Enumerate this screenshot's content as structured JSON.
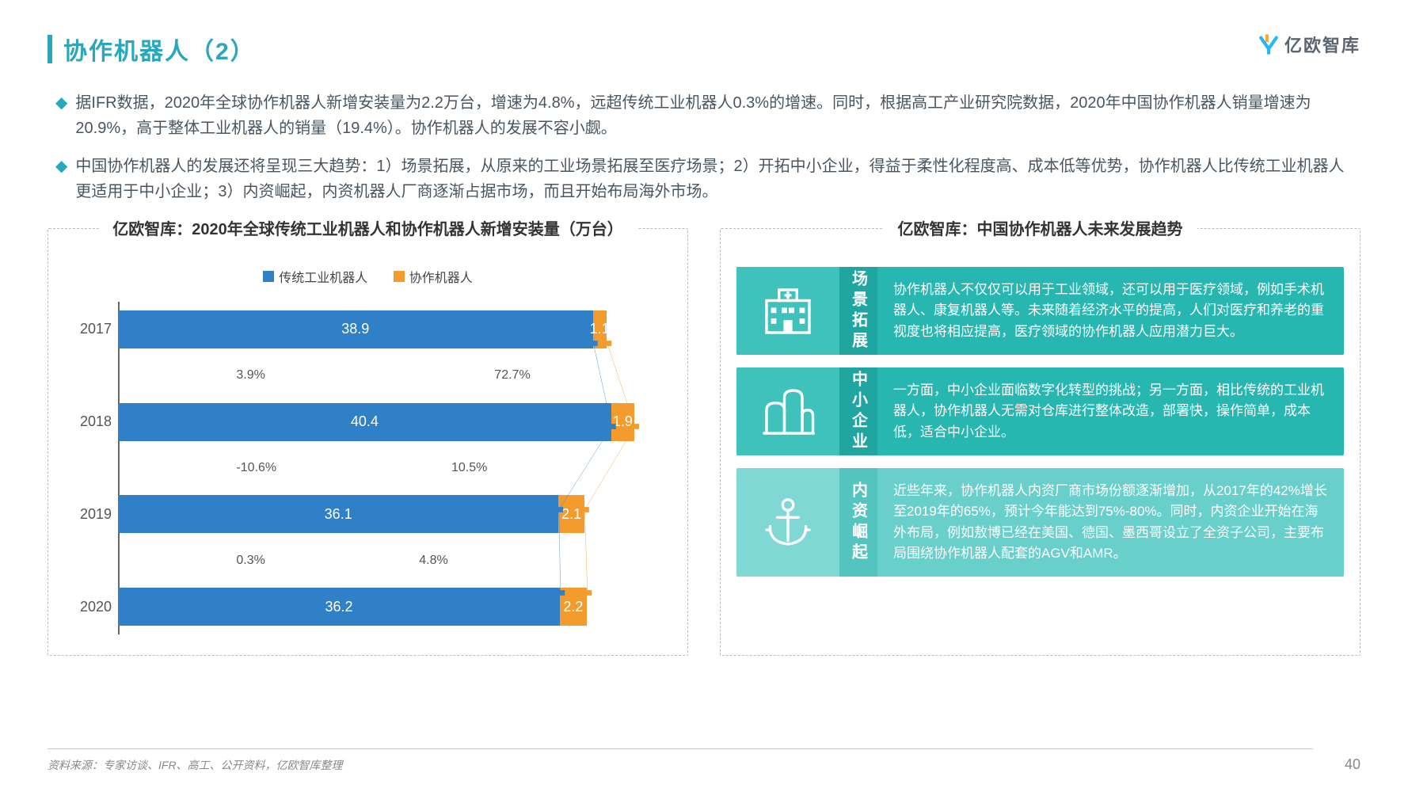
{
  "header": {
    "title": "协作机器人（2）",
    "logo_text": "亿欧智库",
    "accent_color": "#2aa7bf",
    "logo_colors": {
      "bar": "#ffa726",
      "y": "#29b6f6"
    }
  },
  "bullets": [
    "据IFR数据，2020年全球协作机器人新增安装量为2.2万台，增速为4.8%，远超传统工业机器人0.3%的增速。同时，根据高工产业研究院数据，2020年中国协作机器人销量增速为20.9%，高于整体工业机器人的销量（19.4%）。协作机器人的发展不容小觑。",
    "中国协作机器人的发展还将呈现三大趋势：1）场景拓展，从原来的工业场景拓展至医疗场景；2）开拓中小企业，得益于柔性化程度高、成本低等优势，协作机器人比传统工业机器人更适用于中小企业；3）内资崛起，内资机器人厂商逐渐占据市场，而且开始布局海外市场。"
  ],
  "chart": {
    "title": "亿欧智库：2020年全球传统工业机器人和协作机器人新增安装量（万台）",
    "type": "stacked_horizontal_bar_with_line",
    "legend": [
      {
        "label": "传统工业机器人",
        "color": "#2f80c7"
      },
      {
        "label": "协作机器人",
        "color": "#f39b2d"
      }
    ],
    "categories": [
      "2017",
      "2018",
      "2019",
      "2020"
    ],
    "series_a": {
      "name": "传统工业机器人",
      "values": [
        38.9,
        40.4,
        36.1,
        36.2
      ],
      "color": "#2f80c7"
    },
    "series_b": {
      "name": "协作机器人",
      "values": [
        1.1,
        1.9,
        2.1,
        2.2
      ],
      "color": "#f39b2d"
    },
    "x_max": 44,
    "bar_unit_pct": 2.27,
    "growth_a": [
      "3.9%",
      "-10.6%",
      "0.3%"
    ],
    "growth_b": [
      "72.7%",
      "10.5%",
      "4.8%"
    ],
    "growth_a_x": [
      22,
      22,
      22
    ],
    "growth_b_x": [
      70,
      62,
      56
    ],
    "line_color_a": "#2f80c7",
    "line_color_b": "#f39b2d",
    "line_a_points": "88.4,12.5 91.8,37.5 82.0,62.5 82.3,87.5",
    "line_b_points": "91.0,12.5 96.1,37.5 86.8,62.5 87.3,87.5",
    "background_color": "#ffffff",
    "axis_color": "#666666"
  },
  "trends": {
    "title": "亿欧智库：中国协作机器人未来发展趋势",
    "cards": [
      {
        "name": "scene-expansion",
        "label": "场景拓展",
        "body": "协作机器人不仅仅可以用于工业领域，还可以用于医疗领域，例如手术机器人、康复机器人等。未来随着经济水平的提高，人们对医疗和养老的重视度也将相应提高，医疗领域的协作机器人应用潜力巨大。",
        "bg": "#27b6b0",
        "icon_bg": "#3fc2bc",
        "label_bg": "#1fa6a0",
        "icon": "hospital"
      },
      {
        "name": "sme",
        "label": "中小企业",
        "body": "一方面，中小企业面临数字化转型的挑战；另一方面，相比传统的工业机器人，协作机器人无需对仓库进行整体改造，部署快，操作简单，成本低，适合中小企业。",
        "bg": "#27b6b0",
        "icon_bg": "#3fc2bc",
        "label_bg": "#1fa6a0",
        "icon": "buildings"
      },
      {
        "name": "domestic-rise",
        "label": "内资崛起",
        "body": "近些年来，协作机器人内资厂商市场份额逐渐增加，从2017年的42%增长至2019年的65%，预计今年能达到75%-80%。同时，内资企业开始在海外布局，例如敖博已经在美国、德国、墨西哥设立了全资子公司，主要布局围绕协作机器人配套的AGV和AMR。",
        "bg": "#68cfca",
        "icon_bg": "#7fd8d3",
        "label_bg": "#54c4be",
        "icon": "anchor"
      }
    ]
  },
  "footer": {
    "source": "资料来源：专家访谈、IFR、高工、公开资料，亿欧智库整理",
    "page": "40"
  }
}
